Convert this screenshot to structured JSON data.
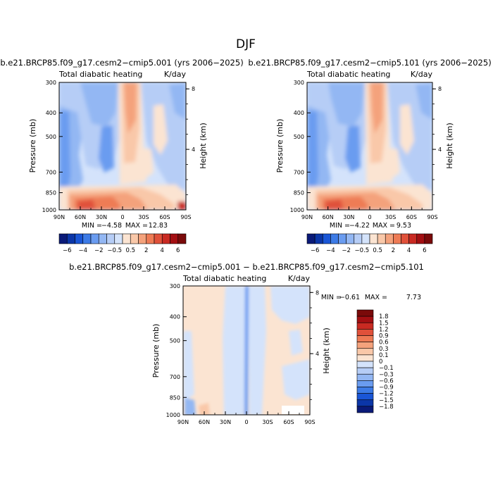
{
  "title": "DJF",
  "chart_data": [
    {
      "type": "heatmap",
      "title": "b.e21.BRCP85.f09_g17.cesm2−cmip5.001 (yrs 2006−2025)",
      "subtitle_left": "Total diabatic heating",
      "units": "K/day",
      "ylabel": "Pressure (mb)",
      "ylabel_right": "Height (km)",
      "x_ticks": [
        "90N",
        "60N",
        "30N",
        "0",
        "30S",
        "60S",
        "90S"
      ],
      "y_ticks": [
        "300",
        "400",
        "500",
        "700",
        "850",
        "1000"
      ],
      "y_ticks_right": [
        "8",
        "4"
      ],
      "min_label": "MIN =",
      "min_value": "−4.58",
      "max_label": "MAX =",
      "max_value": "12.83",
      "colorbar_labels": [
        "−6",
        "−4",
        "−2",
        "−0.5",
        "0.5",
        "2",
        "4",
        "6"
      ],
      "colorbar_colors": [
        "#0a1a78",
        "#0b36a8",
        "#1a56d6",
        "#3d7be6",
        "#6a9cf0",
        "#93b7f3",
        "#b6cdf6",
        "#d4e3fb",
        "#fbe4d2",
        "#f9c8a9",
        "#f4a27c",
        "#ee7b55",
        "#e0513a",
        "#c92a22",
        "#a30f12",
        "#7a0a0a"
      ]
    },
    {
      "type": "heatmap",
      "title": "b.e21.BRCP85.f09_g17.cesm2−cmip5.101 (yrs 2006−2025)",
      "subtitle_left": "Total diabatic heating",
      "units": "K/day",
      "ylabel": "Pressure (mb)",
      "ylabel_right": "Height (km)",
      "x_ticks": [
        "90N",
        "60N",
        "30N",
        "0",
        "30S",
        "60S",
        "90S"
      ],
      "y_ticks": [
        "300",
        "400",
        "500",
        "700",
        "850",
        "1000"
      ],
      "y_ticks_right": [
        "8",
        "4"
      ],
      "min_label": "MIN =",
      "min_value": "−4.22",
      "max_label": "MAX =",
      "max_value": "9.53",
      "colorbar_labels": [
        "−6",
        "−4",
        "−2",
        "−0.5",
        "0.5",
        "2",
        "4",
        "6"
      ],
      "colorbar_colors": [
        "#0a1a78",
        "#0b36a8",
        "#1a56d6",
        "#3d7be6",
        "#6a9cf0",
        "#93b7f3",
        "#b6cdf6",
        "#d4e3fb",
        "#fbe4d2",
        "#f9c8a9",
        "#f4a27c",
        "#ee7b55",
        "#e0513a",
        "#c92a22",
        "#a30f12",
        "#7a0a0a"
      ]
    },
    {
      "type": "heatmap",
      "title": "b.e21.BRCP85.f09_g17.cesm2−cmip5.001 − b.e21.BRCP85.f09_g17.cesm2−cmip5.101",
      "subtitle_left": "Total diabatic heating",
      "units": "K/day",
      "ylabel": "Pressure (mb)",
      "ylabel_right": "Height (km)",
      "x_ticks": [
        "90N",
        "60N",
        "30N",
        "0",
        "30S",
        "60S",
        "90S"
      ],
      "y_ticks": [
        "300",
        "400",
        "500",
        "700",
        "850",
        "1000"
      ],
      "y_ticks_right": [
        "8",
        "4"
      ],
      "min_label": "MIN =",
      "min_value": "−0.61",
      "max_label": "MAX =",
      "max_value": "7.73",
      "colorbar_labels": [
        "1.8",
        "1.5",
        "1.2",
        "0.9",
        "0.6",
        "0.3",
        "0.1",
        "0",
        "−0.1",
        "−0.3",
        "−0.6",
        "−0.9",
        "−1.2",
        "−1.5",
        "−1.8"
      ],
      "colorbar_colors": [
        "#7a0a0a",
        "#a30f12",
        "#c92a22",
        "#e0513a",
        "#ee7b55",
        "#f4a27c",
        "#f9c8a9",
        "#fbe4d2",
        "#d4e3fb",
        "#b6cdf6",
        "#93b7f3",
        "#6a9cf0",
        "#3d7be6",
        "#1a56d6",
        "#0b36a8",
        "#0a1a78"
      ]
    }
  ]
}
